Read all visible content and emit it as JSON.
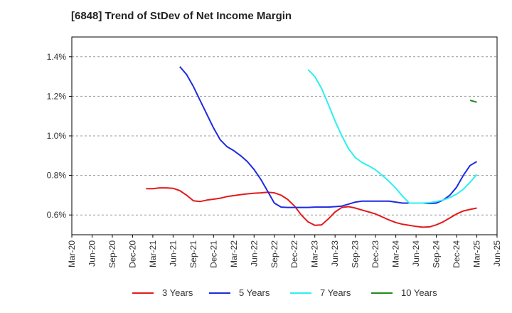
{
  "title": "[6848]  Trend of StDev of Net Income Margin",
  "chart_data": {
    "type": "line",
    "title": "[6848]  Trend of StDev of Net Income Margin",
    "xlabel": "",
    "ylabel": "",
    "x_tick_labels": [
      "Mar-20",
      "Jun-20",
      "Sep-20",
      "Dec-20",
      "Mar-21",
      "Jun-21",
      "Sep-21",
      "Dec-21",
      "Mar-22",
      "Jun-22",
      "Sep-22",
      "Dec-22",
      "Mar-23",
      "Jun-23",
      "Sep-23",
      "Dec-23",
      "Mar-24",
      "Jun-24",
      "Sep-24",
      "Dec-24",
      "Mar-25",
      "Jun-25"
    ],
    "y_ticks": [
      0.6,
      0.8,
      1.0,
      1.2,
      1.4
    ],
    "y_tick_labels": [
      "0.6%",
      "0.8%",
      "1.0%",
      "1.2%",
      "1.4%"
    ],
    "ylim": [
      0.5,
      1.5
    ],
    "grid": "horizontal dashed",
    "legend": "bottom",
    "series": [
      {
        "name": "3 Years",
        "color": "#e31a1c",
        "values": [
          0.733,
          0.733,
          0.737,
          0.737,
          0.735,
          0.723,
          0.7,
          0.672,
          0.668,
          0.675,
          0.68,
          0.685,
          0.693,
          0.698,
          0.703,
          0.707,
          0.71,
          0.712,
          0.715,
          0.712,
          0.7,
          0.678,
          0.645,
          0.6,
          0.565,
          0.548,
          0.55,
          0.58,
          0.615,
          0.638,
          0.642,
          0.635,
          0.625,
          0.615,
          0.605,
          0.59,
          0.575,
          0.562,
          0.553,
          0.548,
          0.542,
          0.538,
          0.54,
          0.55,
          0.565,
          0.585,
          0.605,
          0.62,
          0.628,
          0.635
        ]
      },
      {
        "name": "5 Years",
        "color": "#1f2ae0",
        "values": [
          1.35,
          1.31,
          1.25,
          1.18,
          1.11,
          1.04,
          0.98,
          0.945,
          0.925,
          0.9,
          0.87,
          0.83,
          0.78,
          0.72,
          0.66,
          0.64,
          0.638,
          0.638,
          0.638,
          0.638,
          0.64,
          0.64,
          0.64,
          0.642,
          0.645,
          0.655,
          0.665,
          0.67,
          0.67,
          0.67,
          0.67,
          0.67,
          0.665,
          0.66,
          0.66,
          0.66,
          0.66,
          0.658,
          0.66,
          0.675,
          0.7,
          0.74,
          0.8,
          0.85,
          0.87
        ]
      },
      {
        "name": "7 Years",
        "color": "#2bf0f0",
        "values": [
          1.335,
          1.3,
          1.24,
          1.16,
          1.075,
          1.0,
          0.935,
          0.89,
          0.865,
          0.848,
          0.828,
          0.8,
          0.77,
          0.735,
          0.695,
          0.66,
          0.66,
          0.66,
          0.662,
          0.668,
          0.675,
          0.688,
          0.705,
          0.73,
          0.765,
          0.805
        ]
      },
      {
        "name": "10 Years",
        "color": "#1e8c1e",
        "values": [
          1.18,
          1.17
        ]
      }
    ]
  }
}
